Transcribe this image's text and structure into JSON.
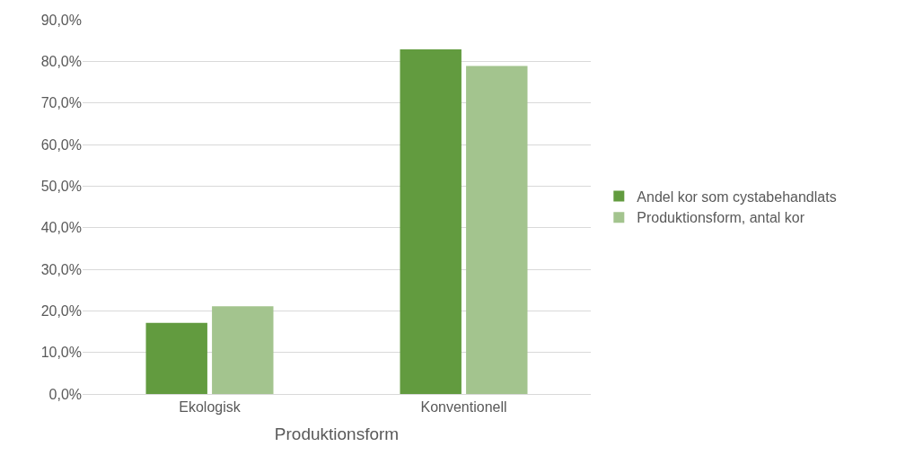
{
  "chart_data": {
    "type": "bar",
    "xlabel": "Produktionsform",
    "categories": [
      "Ekologisk",
      "Konventionell"
    ],
    "series": [
      {
        "name": "Andel kor som cystabehandlats",
        "color": "#629b3f",
        "values": [
          17.1,
          82.9
        ]
      },
      {
        "name": "Produktionsform, antal kor",
        "color": "#a3c48e",
        "values": [
          21.1,
          78.9
        ]
      }
    ],
    "ylim": [
      0,
      90
    ],
    "yticks": [
      {
        "value": 0,
        "label": "0,0%"
      },
      {
        "value": 10,
        "label": "10,0%"
      },
      {
        "value": 20,
        "label": "20,0%"
      },
      {
        "value": 30,
        "label": "30,0%"
      },
      {
        "value": 40,
        "label": "40,0%"
      },
      {
        "value": 50,
        "label": "50,0%"
      },
      {
        "value": 60,
        "label": "60,0%"
      },
      {
        "value": 70,
        "label": "70,0%"
      },
      {
        "value": 80,
        "label": "80,0%"
      },
      {
        "value": 90,
        "label": "90,0%"
      }
    ],
    "grid": "y",
    "legend": "right"
  }
}
